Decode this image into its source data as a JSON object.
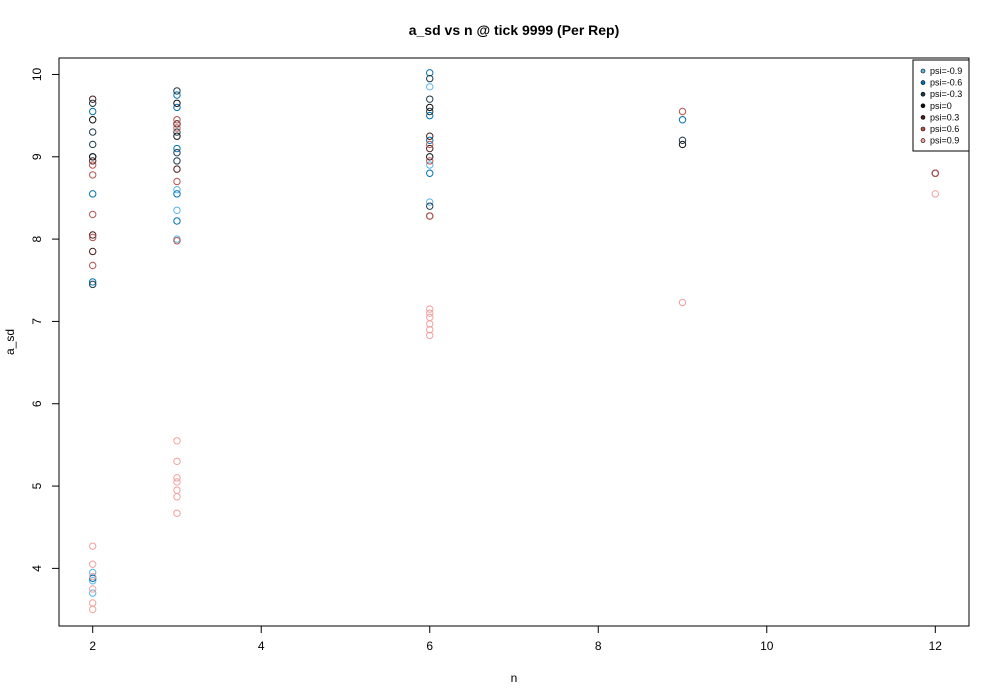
{
  "chart_data": {
    "type": "scatter",
    "title": "a_sd vs n @ tick 9999 (Per Rep)",
    "xlabel": "n",
    "ylabel": "a_sd",
    "xlim": [
      1.6,
      12.4
    ],
    "ylim": [
      3.3,
      10.2
    ],
    "xticks": [
      2,
      4,
      6,
      8,
      10,
      12
    ],
    "yticks": [
      4,
      5,
      6,
      7,
      8,
      9,
      10
    ],
    "legend_position": "top-right",
    "grid": false,
    "series": [
      {
        "name": "psi=-0.9",
        "color": "#56B4E9",
        "x": [
          2,
          2,
          2,
          3,
          3,
          3,
          6,
          6,
          6
        ],
        "y": [
          3.85,
          3.95,
          3.7,
          8.35,
          8.6,
          8.0,
          8.45,
          8.9,
          9.85
        ]
      },
      {
        "name": "psi=-0.6",
        "color": "#0072B2",
        "x": [
          2,
          2,
          2,
          2,
          2,
          3,
          3,
          3,
          3,
          3,
          6,
          6,
          6,
          6,
          9
        ],
        "y": [
          9.55,
          8.55,
          7.48,
          3.88,
          9.0,
          8.22,
          9.1,
          9.75,
          8.55,
          9.6,
          10.02,
          9.5,
          9.2,
          8.8,
          9.45
        ]
      },
      {
        "name": "psi=-0.3",
        "color": "#1B3A4B",
        "x": [
          2,
          2,
          2,
          2,
          3,
          3,
          3,
          3,
          6,
          6,
          6,
          6,
          9,
          12
        ],
        "y": [
          9.65,
          9.3,
          9.15,
          7.45,
          9.8,
          9.3,
          9.05,
          8.95,
          9.95,
          9.7,
          9.55,
          8.4,
          9.2,
          8.8
        ]
      },
      {
        "name": "psi=0",
        "color": "#111111",
        "x": [
          2,
          2,
          3,
          3,
          6,
          6,
          9
        ],
        "y": [
          9.45,
          9.0,
          9.65,
          9.25,
          9.6,
          9.0,
          9.15
        ]
      },
      {
        "name": "psi=0.3",
        "color": "#4A1C1C",
        "x": [
          2,
          2,
          2,
          2,
          3,
          3,
          6,
          6,
          6,
          12
        ],
        "y": [
          9.7,
          8.95,
          8.05,
          7.85,
          9.4,
          8.85,
          9.25,
          9.1,
          8.28,
          8.8
        ]
      },
      {
        "name": "psi=0.6",
        "color": "#B8524F",
        "x": [
          2,
          2,
          2,
          2,
          2,
          3,
          3,
          3,
          3,
          6,
          6,
          6,
          9,
          12
        ],
        "y": [
          8.78,
          8.3,
          8.02,
          7.68,
          8.9,
          9.45,
          8.7,
          7.98,
          9.35,
          9.15,
          8.95,
          8.28,
          9.55,
          8.8
        ]
      },
      {
        "name": "psi=0.9",
        "color": "#F4A09C",
        "x": [
          2,
          2,
          2,
          2,
          2,
          2,
          3,
          3,
          3,
          3,
          3,
          3,
          3,
          6,
          6,
          6,
          6,
          6,
          6,
          9,
          12
        ],
        "y": [
          4.27,
          4.05,
          3.9,
          3.75,
          3.58,
          3.5,
          5.55,
          5.3,
          5.1,
          5.05,
          4.95,
          4.87,
          4.67,
          7.15,
          7.1,
          7.05,
          6.97,
          6.9,
          6.83,
          7.23,
          8.55
        ]
      }
    ]
  }
}
